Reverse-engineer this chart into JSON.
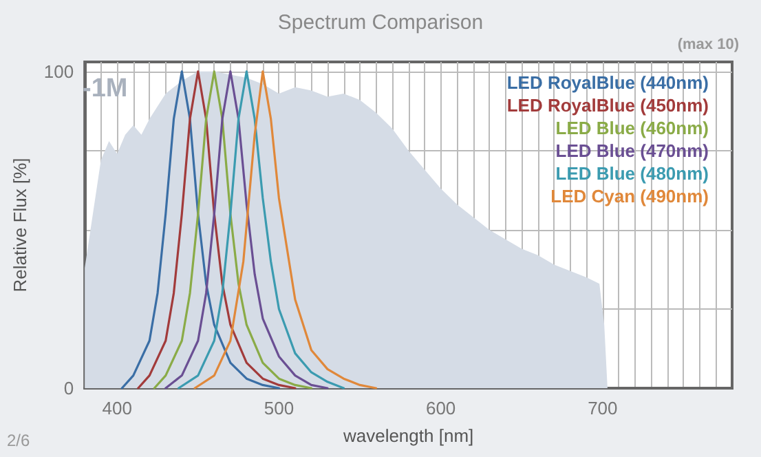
{
  "chart_data": {
    "type": "line",
    "title": "Spectrum Comparison",
    "xlabel": "wavelength [nm]",
    "ylabel": "Relative Flux [%]",
    "annotations": [
      "-1M",
      "(max 10)",
      "2/6"
    ],
    "xlim": [
      380,
      780
    ],
    "ylim": [
      0,
      103
    ],
    "xticks": [
      {
        "value": 380,
        "label": null
      },
      {
        "value": 390,
        "label": null
      },
      400,
      {
        "value": 410,
        "label": null
      },
      {
        "value": 420,
        "label": null
      },
      {
        "value": 430,
        "label": null
      },
      {
        "value": 440,
        "label": null
      },
      {
        "value": 450,
        "label": null
      },
      {
        "value": 460,
        "label": null
      },
      {
        "value": 470,
        "label": null
      },
      {
        "value": 480,
        "label": null
      },
      {
        "value": 490,
        "label": null
      },
      500,
      {
        "value": 510,
        "label": null
      },
      {
        "value": 520,
        "label": null
      },
      {
        "value": 530,
        "label": null
      },
      {
        "value": 540,
        "label": null
      },
      {
        "value": 550,
        "label": null
      },
      {
        "value": 560,
        "label": null
      },
      {
        "value": 570,
        "label": null
      },
      {
        "value": 580,
        "label": null
      },
      {
        "value": 590,
        "label": null
      },
      600,
      {
        "value": 610,
        "label": null
      },
      {
        "value": 620,
        "label": null
      },
      {
        "value": 630,
        "label": null
      },
      {
        "value": 640,
        "label": null
      },
      {
        "value": 650,
        "label": null
      },
      {
        "value": 660,
        "label": null
      },
      {
        "value": 670,
        "label": null
      },
      {
        "value": 680,
        "label": null
      },
      {
        "value": 690,
        "label": null
      },
      700,
      {
        "value": 710,
        "label": null
      },
      {
        "value": 720,
        "label": null
      },
      {
        "value": 730,
        "label": null
      },
      {
        "value": 740,
        "label": null
      },
      {
        "value": 750,
        "label": null
      },
      {
        "value": 760,
        "label": null
      },
      {
        "value": 770,
        "label": null
      }
    ],
    "yticks": [
      0,
      {
        "value": 25,
        "label": null
      },
      {
        "value": 50,
        "label": null
      },
      {
        "value": 75,
        "label": null
      },
      100
    ],
    "grid": true,
    "legend": "top right",
    "marker": "none",
    "line_style": "solid",
    "series": [
      {
        "type": "area",
        "color": "#d5dce6",
        "x": [
          380,
          385,
          390,
          395,
          400,
          405,
          410,
          415,
          420,
          430,
          440,
          450,
          460,
          470,
          480,
          490,
          500,
          510,
          520,
          530,
          540,
          550,
          560,
          570,
          580,
          590,
          600,
          610,
          620,
          630,
          640,
          650,
          660,
          670,
          680,
          690,
          698,
          701,
          703
        ],
        "values": [
          38,
          55,
          72,
          78,
          74,
          80,
          83,
          80,
          85,
          93,
          97,
          100,
          100,
          99,
          98,
          96,
          93,
          95,
          94,
          92,
          93,
          91,
          87,
          82,
          75,
          69,
          63,
          58,
          54,
          50,
          47,
          44,
          42,
          39,
          37,
          35,
          33,
          20,
          0
        ]
      },
      {
        "name": "LED RoyalBlue (440nm)",
        "color": "#3a6ea5",
        "x": [
          403,
          410,
          420,
          425,
          430,
          435,
          440,
          445,
          450,
          455,
          460,
          470,
          480,
          490,
          500
        ],
        "values": [
          0,
          4,
          15,
          30,
          55,
          85,
          100,
          85,
          55,
          33,
          20,
          8,
          3,
          1,
          0
        ]
      },
      {
        "name": "LED RoyalBlue (450nm)",
        "color": "#a23b3b",
        "x": [
          413,
          420,
          430,
          435,
          440,
          445,
          450,
          455,
          460,
          465,
          470,
          480,
          490,
          500,
          510
        ],
        "values": [
          0,
          4,
          15,
          30,
          55,
          85,
          100,
          85,
          55,
          33,
          20,
          8,
          3,
          1,
          0
        ]
      },
      {
        "name": "LED Blue (460nm)",
        "color": "#8aab47",
        "x": [
          423,
          430,
          440,
          445,
          450,
          455,
          460,
          465,
          470,
          475,
          480,
          490,
          500,
          510,
          520
        ],
        "values": [
          0,
          4,
          15,
          30,
          55,
          85,
          100,
          85,
          55,
          33,
          20,
          8,
          3,
          1,
          0
        ]
      },
      {
        "name": "LED Blue (470nm)",
        "color": "#6a4f93",
        "x": [
          430,
          440,
          450,
          455,
          460,
          465,
          470,
          475,
          480,
          485,
          490,
          500,
          510,
          520,
          530
        ],
        "values": [
          0,
          4,
          15,
          30,
          55,
          85,
          100,
          85,
          58,
          36,
          22,
          10,
          4,
          1,
          0
        ]
      },
      {
        "name": "LED Blue (480nm)",
        "color": "#3b9bb0",
        "x": [
          438,
          450,
          460,
          465,
          470,
          475,
          480,
          485,
          490,
          495,
          500,
          510,
          520,
          530,
          540
        ],
        "values": [
          0,
          4,
          15,
          30,
          55,
          85,
          100,
          85,
          60,
          40,
          25,
          11,
          5,
          2,
          0
        ]
      },
      {
        "name": "LED Cyan (490nm)",
        "color": "#e0883a",
        "x": [
          448,
          460,
          470,
          478,
          485,
          490,
          495,
          500,
          510,
          520,
          530,
          540,
          550,
          560
        ],
        "values": [
          0,
          4,
          15,
          40,
          80,
          100,
          85,
          60,
          28,
          12,
          6,
          3,
          1,
          0
        ]
      }
    ]
  }
}
